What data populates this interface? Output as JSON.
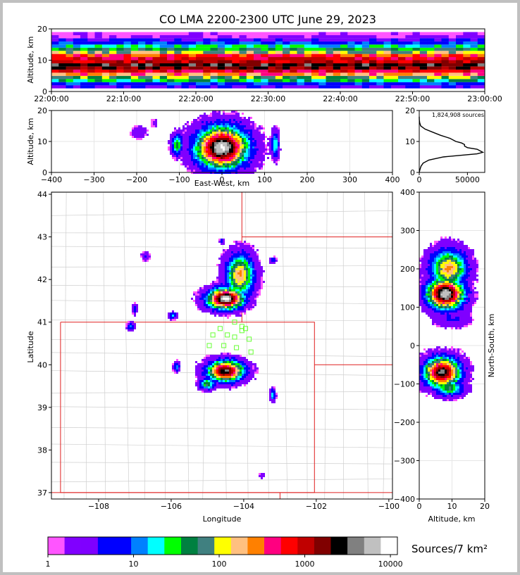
{
  "chart_data": [
    {
      "type": "heatmap",
      "title": "CO LMA 2200-2300 UTC June 29, 2023",
      "xlabel": "",
      "ylabel": "Altitude, km",
      "xtick_labels": [
        "22:00:00",
        "22:10:00",
        "22:20:00",
        "22:30:00",
        "22:40:00",
        "22:50:00",
        "23:00:00"
      ],
      "yticks": [
        0,
        10,
        20
      ],
      "ylim": [
        0,
        20
      ],
      "band_altitudes": [
        {
          "alt_km": 1,
          "bin": 2
        },
        {
          "alt_km": 2,
          "bin": 4
        },
        {
          "alt_km": 3,
          "bin": 7
        },
        {
          "alt_km": 4,
          "bin": 9
        },
        {
          "alt_km": 5,
          "bin": 12
        },
        {
          "alt_km": 6,
          "bin": 14
        },
        {
          "alt_km": 7,
          "bin": 16
        },
        {
          "alt_km": 8,
          "bin": 17
        },
        {
          "alt_km": 9,
          "bin": 15
        },
        {
          "alt_km": 10,
          "bin": 14
        },
        {
          "alt_km": 11,
          "bin": 13
        },
        {
          "alt_km": 12,
          "bin": 10
        },
        {
          "alt_km": 13,
          "bin": 8
        },
        {
          "alt_km": 14,
          "bin": 6
        },
        {
          "alt_km": 15,
          "bin": 4
        },
        {
          "alt_km": 16,
          "bin": 2
        },
        {
          "alt_km": 17,
          "bin": 1
        },
        {
          "alt_km": 18,
          "bin": 0
        }
      ]
    },
    {
      "type": "heatmap",
      "xlabel": "East-West, km",
      "ylabel": "Altitude, km",
      "xticks": [
        -400,
        -300,
        -200,
        -100,
        0,
        100,
        200,
        300,
        400
      ],
      "yticks": [
        0,
        10,
        20
      ],
      "xlim": [
        -400,
        400
      ],
      "ylim": [
        0,
        20
      ],
      "clusters": [
        {
          "x": 0,
          "alt": 8,
          "sx": 55,
          "sa": 6,
          "peak": 20
        },
        {
          "x": -105,
          "alt": 9,
          "sx": 12,
          "sa": 3,
          "peak": 9
        },
        {
          "x": 125,
          "alt": 9,
          "sx": 8,
          "sa": 4,
          "peak": 7
        },
        {
          "x": -195,
          "alt": 13,
          "sx": 18,
          "sa": 2,
          "peak": 2
        },
        {
          "x": -160,
          "alt": 16,
          "sx": 10,
          "sa": 2,
          "peak": 1
        }
      ]
    },
    {
      "type": "line",
      "xticks": [
        0,
        50000
      ],
      "yticks": [
        0,
        10,
        20
      ],
      "xlim": [
        0,
        68000
      ],
      "ylim": [
        0,
        20
      ],
      "annotation": "1,824,908 sources",
      "profile": [
        {
          "alt": 0,
          "count": 0
        },
        {
          "alt": 1,
          "count": 800
        },
        {
          "alt": 2,
          "count": 1800
        },
        {
          "alt": 3,
          "count": 4000
        },
        {
          "alt": 4,
          "count": 10000
        },
        {
          "alt": 5,
          "count": 25000
        },
        {
          "alt": 5.5,
          "count": 42000
        },
        {
          "alt": 6,
          "count": 60000
        },
        {
          "alt": 6.5,
          "count": 66000
        },
        {
          "alt": 7,
          "count": 63000
        },
        {
          "alt": 7.5,
          "count": 60000
        },
        {
          "alt": 8,
          "count": 50000
        },
        {
          "alt": 8.5,
          "count": 47000
        },
        {
          "alt": 9,
          "count": 47000
        },
        {
          "alt": 9.5,
          "count": 44000
        },
        {
          "alt": 10,
          "count": 38000
        },
        {
          "alt": 11,
          "count": 32000
        },
        {
          "alt": 12,
          "count": 22000
        },
        {
          "alt": 13,
          "count": 14000
        },
        {
          "alt": 14,
          "count": 6000
        },
        {
          "alt": 15,
          "count": 1500
        },
        {
          "alt": 16,
          "count": 500
        },
        {
          "alt": 17,
          "count": 100
        },
        {
          "alt": 18,
          "count": 0
        }
      ]
    },
    {
      "type": "heatmap",
      "xlabel": "Longitude",
      "ylabel": "Latitude",
      "xticks": [
        -108,
        -106,
        -104,
        -102,
        -100
      ],
      "yticks": [
        37,
        38,
        39,
        40,
        41,
        42,
        43,
        44
      ],
      "xlim": [
        -109.3,
        -99.9
      ],
      "ylim": [
        36.85,
        44.05
      ],
      "clusters": [
        {
          "lon": -104.1,
          "lat": 42.1,
          "slon": 0.35,
          "slat": 0.45,
          "peak": 12
        },
        {
          "lon": -104.5,
          "lat": 41.55,
          "slon": 0.45,
          "slat": 0.22,
          "peak": 20
        },
        {
          "lon": -104.5,
          "lat": 39.85,
          "slon": 0.45,
          "slat": 0.22,
          "peak": 18
        },
        {
          "lon": -105.0,
          "lat": 39.55,
          "slon": 0.2,
          "slat": 0.12,
          "peak": 9
        },
        {
          "lon": -105.85,
          "lat": 39.95,
          "slon": 0.08,
          "slat": 0.1,
          "peak": 6
        },
        {
          "lon": -103.2,
          "lat": 39.3,
          "slon": 0.07,
          "slat": 0.12,
          "peak": 7
        },
        {
          "lon": -105.95,
          "lat": 41.15,
          "slon": 0.1,
          "slat": 0.07,
          "peak": 6
        },
        {
          "lon": -107.1,
          "lat": 40.9,
          "slon": 0.1,
          "slat": 0.08,
          "peak": 5
        },
        {
          "lon": -106.7,
          "lat": 42.55,
          "slon": 0.1,
          "slat": 0.1,
          "peak": 3
        },
        {
          "lon": -107.0,
          "lat": 41.3,
          "slon": 0.06,
          "slat": 0.12,
          "peak": 3
        },
        {
          "lon": -104.6,
          "lat": 42.9,
          "slon": 0.06,
          "slat": 0.06,
          "peak": 4
        },
        {
          "lon": -103.2,
          "lat": 42.45,
          "slon": 0.08,
          "slat": 0.06,
          "peak": 5
        },
        {
          "lon": -103.5,
          "lat": 37.4,
          "slon": 0.08,
          "slat": 0.06,
          "peak": 2
        }
      ],
      "stations": [
        {
          "lon": -104.65,
          "lat": 40.85
        },
        {
          "lon": -104.45,
          "lat": 40.7
        },
        {
          "lon": -104.25,
          "lat": 41.0
        },
        {
          "lon": -104.05,
          "lat": 40.9
        },
        {
          "lon": -103.95,
          "lat": 40.85
        },
        {
          "lon": -104.85,
          "lat": 40.7
        },
        {
          "lon": -104.25,
          "lat": 40.65
        },
        {
          "lon": -103.85,
          "lat": 40.6
        },
        {
          "lon": -104.95,
          "lat": 40.45
        },
        {
          "lon": -104.55,
          "lat": 40.45
        },
        {
          "lon": -104.2,
          "lat": 40.4
        },
        {
          "lon": -104.05,
          "lat": 40.8
        },
        {
          "lon": -103.8,
          "lat": 40.3
        }
      ],
      "state_borders": [
        [
          [
            -109.05,
            41.0
          ],
          [
            -102.05,
            41.0
          ],
          [
            -102.05,
            37.0
          ],
          [
            -109.05,
            37.0
          ],
          [
            -109.05,
            41.0
          ]
        ],
        [
          [
            -104.05,
            44.05
          ],
          [
            -104.05,
            41.0
          ]
        ],
        [
          [
            -104.05,
            43.0
          ],
          [
            -99.9,
            43.0
          ]
        ],
        [
          [
            -102.05,
            40.0
          ],
          [
            -99.9,
            40.0
          ]
        ],
        [
          [
            -109.3,
            37.0
          ],
          [
            -99.9,
            37.0
          ]
        ],
        [
          [
            -103.0,
            37.0
          ],
          [
            -103.0,
            36.85
          ]
        ]
      ]
    },
    {
      "type": "heatmap",
      "xlabel": "Altitude, km",
      "ylabel": "North-South, km",
      "xticks": [
        0,
        10,
        20
      ],
      "yticks": [
        -400,
        -300,
        -200,
        -100,
        0,
        100,
        200,
        300,
        400
      ],
      "xlim": [
        0,
        20
      ],
      "ylim": [
        -400,
        400
      ],
      "clusters": [
        {
          "alt": 8,
          "y": 135,
          "sa": 5,
          "sy": 35,
          "peak": 20
        },
        {
          "alt": 9,
          "y": 200,
          "sa": 5,
          "sy": 45,
          "peak": 12
        },
        {
          "alt": 7,
          "y": -70,
          "sa": 5,
          "sy": 35,
          "peak": 18
        },
        {
          "alt": 9,
          "y": -110,
          "sa": 4,
          "sy": 20,
          "peak": 9
        },
        {
          "alt": 10,
          "y": 70,
          "sa": 5,
          "sy": 20,
          "peak": 3
        }
      ]
    }
  ],
  "colorbar": {
    "label": "Sources/7 km²",
    "tick_labels": [
      "1",
      "10",
      "100",
      "1000",
      "10000"
    ],
    "colors": [
      "#ff55ff",
      "#8000ff",
      "#7f00ff",
      "#0000ff",
      "#0000ff",
      "#0080ff",
      "#00ffff",
      "#00ff00",
      "#008040",
      "#408080",
      "#ffff00",
      "#ffc080",
      "#ff8000",
      "#ff0080",
      "#ff0000",
      "#c00000",
      "#800000",
      "#000000",
      "#808080",
      "#c0c0c0",
      "#ffffff"
    ]
  }
}
